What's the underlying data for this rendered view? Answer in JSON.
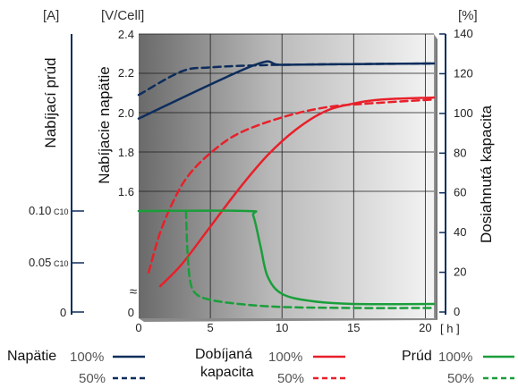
{
  "chart_data": {
    "type": "line",
    "x_unit": "[ h ]",
    "x_ticks": [
      0,
      5,
      10,
      15,
      20
    ],
    "xlim": [
      0,
      20.6
    ],
    "axes": {
      "current": {
        "unit": "[A]",
        "title": "Nabíjací prúd",
        "ticks": [
          {
            "label": "0",
            "sub": ""
          },
          {
            "label": "0.05",
            "sub": "C10"
          },
          {
            "label": "0.10",
            "sub": "C10"
          }
        ]
      },
      "voltage": {
        "unit": "[V/Cell]",
        "title": "Nabíjacie napätie",
        "ticks": [
          "2.4",
          "2.2",
          "2.0",
          "1.8",
          "1.6"
        ],
        "break_label": "0"
      },
      "capacity": {
        "unit": "[%]",
        "title": "Dosiahnutá kapacita",
        "ticks": [
          "140",
          "120",
          "100",
          "80",
          "60",
          "40",
          "20",
          "0"
        ]
      }
    },
    "break_symbol": "≈",
    "colors": {
      "voltage": "#0d2d5c",
      "capacity": "#e8202a",
      "current": "#1a9e3a"
    },
    "series": [
      {
        "name": "Napätie 100%",
        "axis": "voltage",
        "style": "solid",
        "color": "#0d2d5c",
        "points": [
          [
            0,
            1.97
          ],
          [
            8,
            2.24
          ],
          [
            10,
            2.243
          ],
          [
            15,
            2.247
          ],
          [
            20.6,
            2.25
          ]
        ]
      },
      {
        "name": "Napätie 50%",
        "axis": "voltage",
        "style": "dashed",
        "color": "#0d2d5c",
        "points": [
          [
            0,
            2.09
          ],
          [
            3,
            2.21
          ],
          [
            5,
            2.23
          ],
          [
            8,
            2.24
          ],
          [
            12,
            2.245
          ],
          [
            20.6,
            2.25
          ]
        ]
      },
      {
        "name": "Dobíjaná kapacita 100%",
        "axis": "capacity",
        "style": "solid",
        "color": "#e8202a",
        "points": [
          [
            1.5,
            13
          ],
          [
            3,
            24
          ],
          [
            5,
            43
          ],
          [
            7,
            62
          ],
          [
            9,
            79
          ],
          [
            11,
            92
          ],
          [
            13,
            101
          ],
          [
            15,
            105
          ],
          [
            17,
            107
          ],
          [
            20.6,
            108
          ]
        ]
      },
      {
        "name": "Dobíjaná kapacita 50%",
        "axis": "capacity",
        "style": "dashed",
        "color": "#e8202a",
        "points": [
          [
            0.7,
            20
          ],
          [
            1.5,
            40
          ],
          [
            2.5,
            57
          ],
          [
            3.5,
            69
          ],
          [
            5,
            80
          ],
          [
            7,
            90
          ],
          [
            10,
            98
          ],
          [
            13,
            103
          ],
          [
            16,
            105
          ],
          [
            20.6,
            107
          ]
        ]
      },
      {
        "name": "Prúd 100%",
        "axis": "current",
        "style": "solid",
        "color": "#1a9e3a",
        "points": [
          [
            0,
            0.1
          ],
          [
            7.5,
            0.1
          ],
          [
            8,
            0.095
          ],
          [
            8.5,
            0.065
          ],
          [
            9,
            0.035
          ],
          [
            10,
            0.018
          ],
          [
            12,
            0.011
          ],
          [
            15,
            0.008
          ],
          [
            20.6,
            0.008
          ]
        ]
      },
      {
        "name": "Prúd 50%",
        "axis": "current",
        "style": "dashed",
        "color": "#1a9e3a",
        "points": [
          [
            3.3,
            0.1
          ],
          [
            3.4,
            0.06
          ],
          [
            3.6,
            0.03
          ],
          [
            4,
            0.018
          ],
          [
            5,
            0.012
          ],
          [
            7,
            0.008
          ],
          [
            10,
            0.005
          ],
          [
            15,
            0.004
          ],
          [
            20.6,
            0.004
          ]
        ]
      }
    ],
    "legend": {
      "groups": [
        {
          "name": "Napätie",
          "color": "#0d2d5c",
          "items": [
            "100%",
            "50%"
          ]
        },
        {
          "name": "Dobíjaná kapacita",
          "name_lines": [
            "Dobíjaná",
            "kapacita"
          ],
          "color": "#e8202a",
          "items": [
            "100%",
            "50%"
          ]
        },
        {
          "name": "Prúd",
          "color": "#1a9e3a",
          "items": [
            "100%",
            "50%"
          ]
        }
      ]
    }
  }
}
